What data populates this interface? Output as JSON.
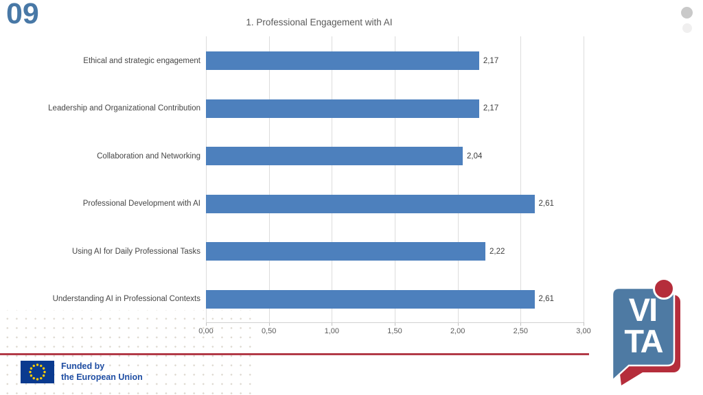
{
  "slide": {
    "number": "09"
  },
  "chart_data": {
    "type": "bar",
    "orientation": "horizontal",
    "title": "1. Professional Engagement with AI",
    "categories": [
      "Ethical and strategic engagement",
      "Leadership and Organizational Contribution",
      "Collaboration and Networking",
      "Professional Development with AI",
      "Using AI for Daily Professional Tasks",
      "Understanding AI in Professional Contexts"
    ],
    "values": [
      2.17,
      2.17,
      2.04,
      2.61,
      2.22,
      2.61
    ],
    "value_labels": [
      "2,17",
      "2,17",
      "2,04",
      "2,61",
      "2,22",
      "2,61"
    ],
    "xlabel": "",
    "ylabel": "",
    "xlim": [
      0,
      3
    ],
    "x_tick_values": [
      0,
      0.5,
      1,
      1.5,
      2,
      2.5,
      3
    ],
    "x_tick_labels": [
      "0,00",
      "0,50",
      "1,00",
      "1,50",
      "2,00",
      "2,50",
      "3,00"
    ],
    "grid": true,
    "legend": false,
    "bar_color": "#4d80bd"
  },
  "footer": {
    "eu_funding": {
      "line1": "Funded by",
      "line2": "the European Union"
    }
  },
  "vita_logo": {
    "line1": "VI",
    "line2": "TA"
  },
  "colors": {
    "slide_number_blue": "#4878a6",
    "divider_red": "#b23a47",
    "logo_blue": "#4e7aa3",
    "logo_red": "#b52d3b",
    "eu_flag_blue": "#0a3a8f",
    "eu_star_yellow": "#ffcc00",
    "eu_text_blue": "#1f4ea3",
    "title_gray": "#595959"
  }
}
